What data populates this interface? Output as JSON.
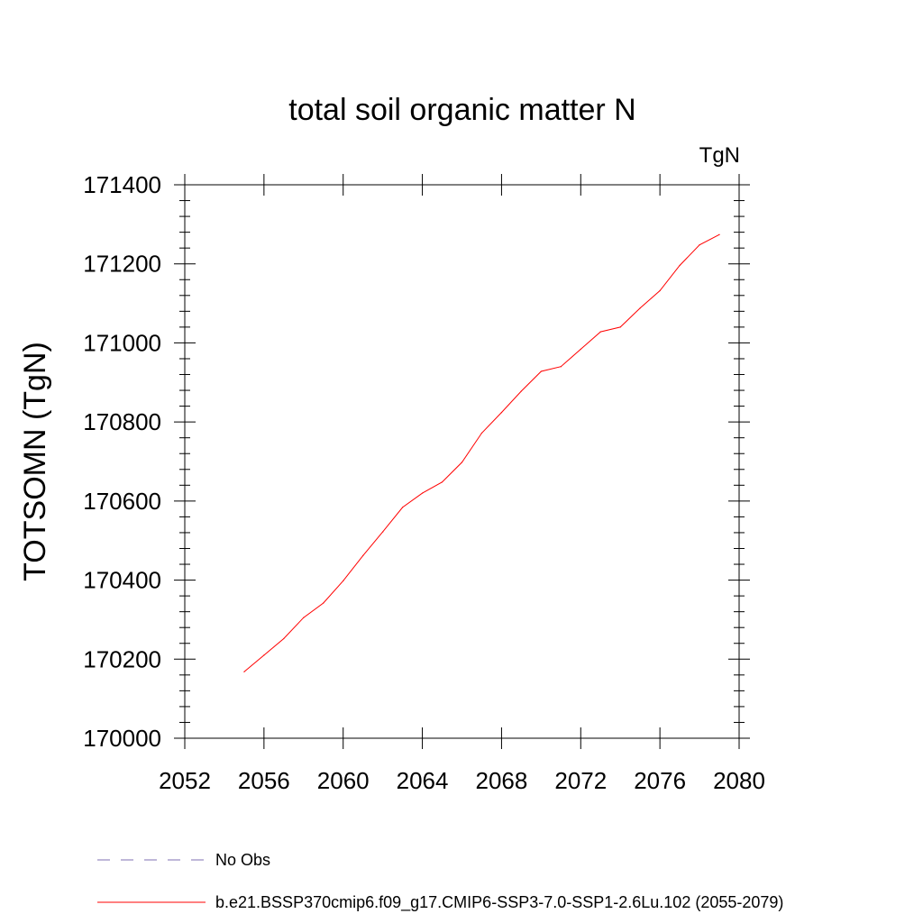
{
  "chart_data": {
    "type": "line",
    "title": "total soil organic matter N",
    "units_label": "TgN",
    "xlabel": "",
    "ylabel": "TOTSOMN  (TgN)",
    "xlim": [
      2052,
      2080
    ],
    "ylim": [
      170000,
      171400
    ],
    "x_ticks": [
      2052,
      2056,
      2060,
      2064,
      2068,
      2072,
      2076,
      2080
    ],
    "y_ticks": [
      170000,
      170200,
      170400,
      170600,
      170800,
      171000,
      171200,
      171400
    ],
    "x_tick_labels": [
      "2052",
      "2056",
      "2060",
      "2064",
      "2068",
      "2072",
      "2076",
      "2080"
    ],
    "y_tick_labels": [
      "170000",
      "170200",
      "170400",
      "170600",
      "170800",
      "171000",
      "171200",
      "171400"
    ],
    "grid": false,
    "legend_position": "bottom",
    "series": [
      {
        "name": "No Obs",
        "color": "#7f6fb3",
        "dash": "dashed",
        "x": [],
        "y": []
      },
      {
        "name": "b.e21.BSSP370cmip6.f09_g17.CMIP6-SSP3-7.0-SSP1-2.6Lu.102 (2055-2079)",
        "color": "#ff0000",
        "dash": "solid",
        "x": [
          2055,
          2056,
          2057,
          2058,
          2059,
          2060,
          2061,
          2062,
          2063,
          2064,
          2065,
          2066,
          2067,
          2068,
          2069,
          2070,
          2071,
          2072,
          2073,
          2074,
          2075,
          2076,
          2077,
          2078,
          2079
        ],
        "y": [
          170168,
          170210,
          170252,
          170305,
          170342,
          170398,
          170462,
          170522,
          170584,
          170620,
          170648,
          170698,
          170772,
          170824,
          170878,
          170928,
          170940,
          170984,
          171028,
          171040,
          171088,
          171132,
          171196,
          171248,
          171274
        ]
      }
    ]
  }
}
